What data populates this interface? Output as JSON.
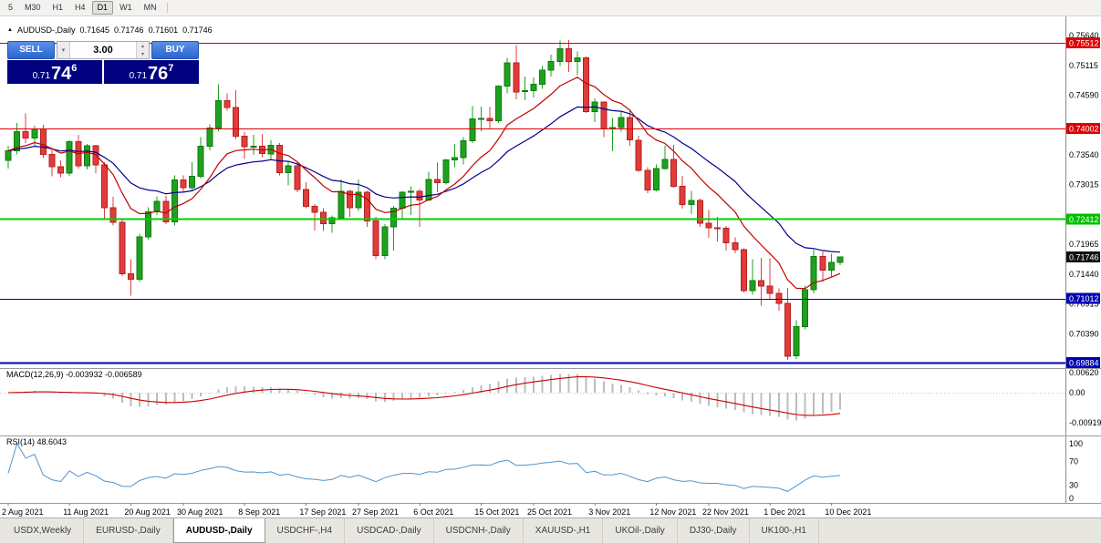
{
  "toolbar": {
    "timeframes": [
      {
        "label": "5",
        "active": false
      },
      {
        "label": "M30",
        "active": false
      },
      {
        "label": "H1",
        "active": false
      },
      {
        "label": "H4",
        "active": false
      },
      {
        "label": "D1",
        "active": true
      },
      {
        "label": "W1",
        "active": false
      },
      {
        "label": "MN",
        "active": false
      }
    ]
  },
  "icons": {
    "panel_toggle": "▲",
    "volume_dropdown": "▾",
    "spin_up": "▴",
    "spin_down": "▾"
  },
  "trade_panel": {
    "sell_label": "SELL",
    "buy_label": "BUY",
    "volume": "3.00",
    "sell_price": {
      "prefix": "0.71",
      "big": "74",
      "sup": "6"
    },
    "buy_price": {
      "prefix": "0.71",
      "big": "76",
      "sup": "7"
    }
  },
  "chart_data": {
    "type": "candlestick",
    "symbol": "AUDUSD-,Daily",
    "ohlc": {
      "open": "0.71645",
      "high": "0.71746",
      "low": "0.71601",
      "close": "0.71746"
    },
    "candle_colors": {
      "up": "#1fa11f",
      "up_border": "#0e7c0e",
      "down": "#e23b3b",
      "down_border": "#b32020"
    },
    "candles": [
      [
        0.7344,
        0.737,
        0.733,
        0.7361
      ],
      [
        0.7361,
        0.741,
        0.7355,
        0.7395
      ],
      [
        0.7395,
        0.7427,
        0.7375,
        0.7384
      ],
      [
        0.7384,
        0.7405,
        0.7369,
        0.74
      ],
      [
        0.74,
        0.7407,
        0.7348,
        0.7355
      ],
      [
        0.7355,
        0.7364,
        0.7316,
        0.7333
      ],
      [
        0.7333,
        0.7344,
        0.7315,
        0.7322
      ],
      [
        0.7322,
        0.738,
        0.7317,
        0.7377
      ],
      [
        0.7377,
        0.7389,
        0.733,
        0.7335
      ],
      [
        0.7335,
        0.7373,
        0.7328,
        0.737
      ],
      [
        0.737,
        0.7372,
        0.7322,
        0.7336
      ],
      [
        0.7336,
        0.7341,
        0.724,
        0.7261
      ],
      [
        0.7261,
        0.728,
        0.723,
        0.7235
      ],
      [
        0.7235,
        0.724,
        0.7141,
        0.7145
      ],
      [
        0.7145,
        0.717,
        0.7106,
        0.7135
      ],
      [
        0.7135,
        0.7215,
        0.713,
        0.721
      ],
      [
        0.721,
        0.7262,
        0.7205,
        0.7254
      ],
      [
        0.7254,
        0.7281,
        0.7248,
        0.7272
      ],
      [
        0.7272,
        0.7282,
        0.7232,
        0.7236
      ],
      [
        0.7236,
        0.7318,
        0.723,
        0.731
      ],
      [
        0.731,
        0.7318,
        0.7288,
        0.7296
      ],
      [
        0.7296,
        0.7341,
        0.729,
        0.7316
      ],
      [
        0.7316,
        0.7385,
        0.7312,
        0.7369
      ],
      [
        0.7369,
        0.7408,
        0.7362,
        0.7401
      ],
      [
        0.7401,
        0.7478,
        0.7396,
        0.7449
      ],
      [
        0.7449,
        0.7462,
        0.7432,
        0.7437
      ],
      [
        0.7437,
        0.7468,
        0.7382,
        0.7387
      ],
      [
        0.7387,
        0.7394,
        0.7347,
        0.7368
      ],
      [
        0.7368,
        0.7389,
        0.7354,
        0.7369
      ],
      [
        0.7369,
        0.739,
        0.735,
        0.7356
      ],
      [
        0.7356,
        0.738,
        0.7344,
        0.7371
      ],
      [
        0.7371,
        0.7375,
        0.7318,
        0.7323
      ],
      [
        0.7323,
        0.7343,
        0.73,
        0.7335
      ],
      [
        0.7335,
        0.7341,
        0.7288,
        0.7293
      ],
      [
        0.7293,
        0.7306,
        0.726,
        0.7263
      ],
      [
        0.7263,
        0.7267,
        0.7221,
        0.7253
      ],
      [
        0.7253,
        0.726,
        0.722,
        0.7233
      ],
      [
        0.7233,
        0.7247,
        0.7217,
        0.7243
      ],
      [
        0.7243,
        0.7311,
        0.7239,
        0.729
      ],
      [
        0.729,
        0.7292,
        0.7245,
        0.7261
      ],
      [
        0.7261,
        0.7311,
        0.7255,
        0.7288
      ],
      [
        0.7288,
        0.7291,
        0.7227,
        0.7238
      ],
      [
        0.7238,
        0.7245,
        0.717,
        0.7177
      ],
      [
        0.7177,
        0.7232,
        0.717,
        0.7227
      ],
      [
        0.7227,
        0.7264,
        0.7186,
        0.726
      ],
      [
        0.726,
        0.729,
        0.724,
        0.7288
      ],
      [
        0.7288,
        0.7299,
        0.7248,
        0.729
      ],
      [
        0.729,
        0.7294,
        0.7227,
        0.7275
      ],
      [
        0.7275,
        0.7324,
        0.7272,
        0.7311
      ],
      [
        0.7311,
        0.734,
        0.7288,
        0.7305
      ],
      [
        0.7305,
        0.7347,
        0.7302,
        0.7345
      ],
      [
        0.7345,
        0.7373,
        0.7332,
        0.7349
      ],
      [
        0.7349,
        0.7385,
        0.7337,
        0.7379
      ],
      [
        0.7379,
        0.744,
        0.7375,
        0.7417
      ],
      [
        0.7417,
        0.7439,
        0.7396,
        0.7418
      ],
      [
        0.7418,
        0.7438,
        0.74,
        0.7414
      ],
      [
        0.7414,
        0.7477,
        0.741,
        0.7475
      ],
      [
        0.7475,
        0.7525,
        0.7462,
        0.7516
      ],
      [
        0.7516,
        0.7547,
        0.7452,
        0.7465
      ],
      [
        0.7465,
        0.7492,
        0.745,
        0.7467
      ],
      [
        0.7467,
        0.749,
        0.7455,
        0.7478
      ],
      [
        0.7478,
        0.751,
        0.747,
        0.7503
      ],
      [
        0.7503,
        0.753,
        0.7492,
        0.7518
      ],
      [
        0.7518,
        0.7555,
        0.751,
        0.7541
      ],
      [
        0.7541,
        0.7556,
        0.75,
        0.7518
      ],
      [
        0.7518,
        0.7536,
        0.7494,
        0.7525
      ],
      [
        0.7525,
        0.7527,
        0.7428,
        0.743
      ],
      [
        0.743,
        0.7453,
        0.7412,
        0.7447
      ],
      [
        0.7447,
        0.7448,
        0.7385,
        0.74
      ],
      [
        0.74,
        0.7419,
        0.736,
        0.7402
      ],
      [
        0.7402,
        0.7431,
        0.7395,
        0.742
      ],
      [
        0.742,
        0.7432,
        0.737,
        0.738
      ],
      [
        0.738,
        0.7388,
        0.7324,
        0.7327
      ],
      [
        0.7327,
        0.7332,
        0.7287,
        0.7292
      ],
      [
        0.7292,
        0.7337,
        0.729,
        0.733
      ],
      [
        0.733,
        0.737,
        0.7328,
        0.7346
      ],
      [
        0.7346,
        0.7372,
        0.7296,
        0.7299
      ],
      [
        0.7299,
        0.7317,
        0.7259,
        0.7267
      ],
      [
        0.7267,
        0.7291,
        0.725,
        0.7274
      ],
      [
        0.7274,
        0.7277,
        0.7227,
        0.7234
      ],
      [
        0.7234,
        0.7257,
        0.7208,
        0.7226
      ],
      [
        0.7226,
        0.7245,
        0.7202,
        0.7225
      ],
      [
        0.7225,
        0.7229,
        0.7186,
        0.7199
      ],
      [
        0.7199,
        0.7209,
        0.7181,
        0.7187
      ],
      [
        0.7187,
        0.719,
        0.7112,
        0.7115
      ],
      [
        0.7115,
        0.717,
        0.7108,
        0.7133
      ],
      [
        0.7133,
        0.7173,
        0.7089,
        0.7123
      ],
      [
        0.7123,
        0.7172,
        0.71,
        0.711
      ],
      [
        0.711,
        0.7119,
        0.708,
        0.7093
      ],
      [
        0.7093,
        0.712,
        0.6993,
        0.7
      ],
      [
        0.7,
        0.7063,
        0.6995,
        0.7052
      ],
      [
        0.7052,
        0.7124,
        0.7047,
        0.7117
      ],
      [
        0.7117,
        0.7187,
        0.711,
        0.7175
      ],
      [
        0.7175,
        0.7184,
        0.713,
        0.7151
      ],
      [
        0.7151,
        0.718,
        0.7139,
        0.71645
      ],
      [
        0.71645,
        0.71746,
        0.71601,
        0.71746
      ]
    ],
    "overlays": {
      "fast": {
        "method": "ema",
        "period": 10,
        "color": "#c00000"
      },
      "slow": {
        "method": "ema",
        "period": 21,
        "color": "#000090"
      }
    },
    "h_lines": [
      {
        "price": 0.75512,
        "color": "#dd0000",
        "width": 1
      },
      {
        "price": 0.74002,
        "color": "#dd0000",
        "width": 1
      },
      {
        "price": 0.72412,
        "color": "#00d000",
        "width": 2
      },
      {
        "price": 0.71012,
        "color": "#0000b4",
        "width": 1
      },
      {
        "price": 0.69884,
        "color": "#0000b4",
        "width": 2
      }
    ],
    "y_axis": {
      "labels": [
        {
          "text": "0.75640",
          "price": 0.7564
        },
        {
          "text": "0.75115",
          "price": 0.75115
        },
        {
          "text": "0.74590",
          "price": 0.7459
        },
        {
          "text": "0.73540",
          "price": 0.7354
        },
        {
          "text": "0.73015",
          "price": 0.73015
        },
        {
          "text": "0.71965",
          "price": 0.71965
        },
        {
          "text": "0.71440",
          "price": 0.7144
        },
        {
          "text": "0.70915",
          "price": 0.70915
        },
        {
          "text": "0.70390",
          "price": 0.7039
        }
      ],
      "badges": [
        {
          "text": "0.75512",
          "price": 0.75512,
          "color": "#dd0000"
        },
        {
          "text": "0.74002",
          "price": 0.74002,
          "color": "#dd0000"
        },
        {
          "text": "0.72412",
          "price": 0.72412,
          "color": "#00c000"
        },
        {
          "text": "0.71746",
          "price": 0.71746,
          "color": "#101010"
        },
        {
          "text": "0.71012",
          "price": 0.71012,
          "color": "#0000b4"
        },
        {
          "text": "0.69884",
          "price": 0.69884,
          "color": "#0000b4"
        }
      ]
    },
    "x_axis_labels": [
      {
        "text": "2 Aug 2021",
        "index": 0
      },
      {
        "text": "11 Aug 2021",
        "index": 7
      },
      {
        "text": "20 Aug 2021",
        "index": 14
      },
      {
        "text": "30 Aug 2021",
        "index": 20
      },
      {
        "text": "8 Sep 2021",
        "index": 27
      },
      {
        "text": "17 Sep 2021",
        "index": 34
      },
      {
        "text": "27 Sep 2021",
        "index": 40
      },
      {
        "text": "6 Oct 2021",
        "index": 47
      },
      {
        "text": "15 Oct 2021",
        "index": 54
      },
      {
        "text": "25 Oct 2021",
        "index": 60
      },
      {
        "text": "3 Nov 2021",
        "index": 67
      },
      {
        "text": "12 Nov 2021",
        "index": 74
      },
      {
        "text": "22 Nov 2021",
        "index": 80
      },
      {
        "text": "1 Dec 2021",
        "index": 87
      },
      {
        "text": "10 Dec 2021",
        "index": 94
      }
    ],
    "macd": {
      "label": "MACD(12,26,9) -0.003932 -0.006589",
      "params": [
        12,
        26,
        9
      ],
      "current": [
        "-0.003932",
        "-0.006589"
      ],
      "hist_color": "#bdbdbd",
      "signal_color": "#c80000",
      "axis": [
        {
          "text": "0.00620",
          "value": 0.0062
        },
        {
          "text": "0.00",
          "value": 0
        },
        {
          "text": "-0.00919",
          "value": -0.00919
        }
      ]
    },
    "rsi": {
      "label": "RSI(14) 48.6043",
      "period": 14,
      "current": "48.6043",
      "color": "#4f94cd",
      "axis": [
        {
          "text": "100",
          "value": 100
        },
        {
          "text": "70",
          "value": 70
        },
        {
          "text": "30",
          "value": 30
        },
        {
          "text": "0",
          "value": 0
        }
      ]
    }
  },
  "bottom_tabs": [
    {
      "label": "USDX,Weekly",
      "active": false
    },
    {
      "label": "EURUSD-,Daily",
      "active": false
    },
    {
      "label": "AUDUSD-,Daily",
      "active": true
    },
    {
      "label": "USDCHF-,H4",
      "active": false
    },
    {
      "label": "USDCAD-,Daily",
      "active": false
    },
    {
      "label": "USDCNH-,Daily",
      "active": false
    },
    {
      "label": "XAUUSD-,H1",
      "active": false
    },
    {
      "label": "UKOil-,Daily",
      "active": false
    },
    {
      "label": "DJ30-,Daily",
      "active": false
    },
    {
      "label": "UK100-,H1",
      "active": false
    }
  ]
}
